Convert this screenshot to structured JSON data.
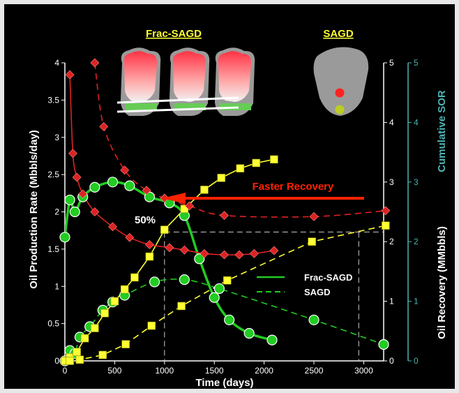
{
  "chart_data": {
    "type": "line",
    "title": "",
    "xlabel": "Time (days)",
    "ylabel_left": "Oil Production Rate (Mbbls/day)",
    "ylabel_right1": "Oil Recovery (MMbbls)",
    "ylabel_right2": "Cumulative SOR",
    "xlim": [
      0,
      3200
    ],
    "xticks": [
      0,
      500,
      1000,
      1500,
      2000,
      2500,
      3000
    ],
    "ylim_left": [
      0,
      4
    ],
    "yticks_left": [
      0,
      0.5,
      1,
      1.5,
      2,
      2.5,
      3,
      3.5,
      4
    ],
    "ylim_right1": [
      0,
      5
    ],
    "yticks_right1": [
      0,
      1,
      2,
      3,
      4,
      5
    ],
    "ylim_right2": [
      0,
      5
    ],
    "yticks_right2": [
      0,
      1,
      2,
      3,
      4,
      5
    ],
    "grid": false,
    "legend": {
      "position": "right-center",
      "entries": [
        {
          "label": "Frac-SAGD",
          "style": "solid"
        },
        {
          "label": "SAGD",
          "style": "dashed"
        }
      ]
    },
    "annotations": {
      "faster_recovery": "Faster Recovery",
      "fifty_percent": "50%",
      "frac_sagd_label": "Frac-SAGD",
      "sagd_label": "SAGD"
    },
    "colors": {
      "rate": "#22cc22",
      "recovery": "#ffff33",
      "sor": "#dd2222",
      "axis": "#ffffff",
      "right_axis": "#4fb3b3"
    },
    "series": [
      {
        "name": "Frac-SAGD",
        "kind": "rate",
        "style": "solid",
        "axis": "left",
        "x": [
          0,
          50,
          100,
          180,
          300,
          480,
          650,
          850,
          1050,
          1200,
          1350,
          1500,
          1650,
          1850,
          2080
        ],
        "y": [
          1.66,
          2.16,
          2.0,
          2.2,
          2.33,
          2.4,
          2.35,
          2.2,
          2.12,
          1.95,
          1.37,
          0.85,
          0.55,
          0.37,
          0.28
        ]
      },
      {
        "name": "SAGD",
        "kind": "rate",
        "style": "dashed",
        "axis": "left",
        "x": [
          0,
          50,
          100,
          150,
          250,
          380,
          480,
          600,
          900,
          1200,
          1550,
          2500,
          3200
        ],
        "y": [
          0.0,
          0.14,
          0.1,
          0.32,
          0.46,
          0.68,
          0.79,
          0.88,
          1.06,
          1.09,
          0.97,
          0.55,
          0.22
        ]
      },
      {
        "name": "Frac-SAGD",
        "kind": "recovery",
        "style": "solid",
        "axis": "right1",
        "x": [
          0,
          50,
          120,
          200,
          300,
          400,
          500,
          600,
          700,
          850,
          1000,
          1200,
          1400,
          1570,
          1760,
          1920,
          2100
        ],
        "y": [
          0.0,
          0.06,
          0.15,
          0.38,
          0.55,
          0.8,
          1.0,
          1.2,
          1.4,
          1.75,
          2.2,
          2.55,
          2.87,
          3.07,
          3.23,
          3.32,
          3.38
        ]
      },
      {
        "name": "SAGD",
        "kind": "recovery",
        "style": "dashed",
        "axis": "right1",
        "x": [
          0,
          50,
          150,
          380,
          610,
          870,
          1170,
          1630,
          2480,
          3220
        ],
        "y": [
          0.0,
          0.0,
          0.02,
          0.1,
          0.28,
          0.59,
          0.92,
          1.35,
          2.0,
          2.27
        ]
      },
      {
        "name": "Frac-SAGD",
        "kind": "sor",
        "style": "solid",
        "axis": "right2",
        "x": [
          50,
          80,
          120,
          180,
          300,
          480,
          650,
          850,
          1050,
          1200,
          1400,
          1600,
          1750,
          1900,
          2100
        ],
        "y": [
          4.8,
          3.48,
          3.08,
          2.8,
          2.5,
          2.25,
          2.07,
          1.95,
          1.9,
          1.86,
          1.8,
          1.78,
          1.78,
          1.8,
          1.85
        ]
      },
      {
        "name": "SAGD",
        "kind": "sor",
        "style": "dashed",
        "axis": "right2",
        "x": [
          300,
          390,
          600,
          820,
          1000,
          1250,
          1600,
          2500,
          3220
        ],
        "y": [
          5.0,
          3.93,
          3.2,
          2.86,
          2.73,
          2.6,
          2.44,
          2.42,
          2.52
        ]
      }
    ]
  }
}
